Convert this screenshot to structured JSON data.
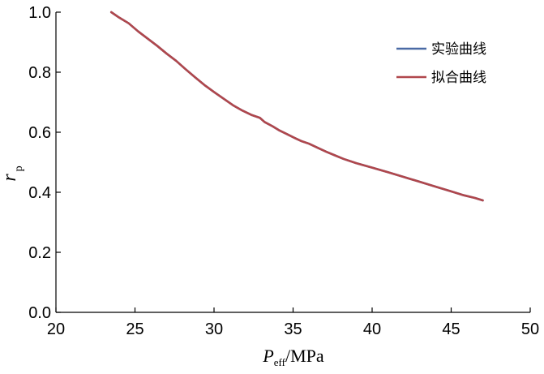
{
  "chart_data": {
    "type": "line",
    "title": "",
    "xlabel": {
      "main": "P",
      "sub": "eff",
      "unit": "/MPa"
    },
    "ylabel": {
      "main": "r",
      "sub": "p"
    },
    "xlim": [
      20,
      50
    ],
    "ylim": [
      0.0,
      1.0
    ],
    "x_ticks": [
      "20",
      "25",
      "30",
      "35",
      "40",
      "45",
      "50"
    ],
    "y_ticks": [
      "0.0",
      "0.2",
      "0.4",
      "0.6",
      "0.8",
      "1.0"
    ],
    "grid": false,
    "legend_position": "top-right",
    "series": [
      {
        "name": "实验曲线",
        "color": "#4a6aa5",
        "x": [
          23.5,
          24.0,
          24.6,
          25.2,
          25.8,
          26.4,
          27.0,
          27.6,
          28.2,
          28.8,
          29.4,
          30.0,
          30.6,
          31.2,
          31.8,
          32.4,
          32.9,
          33.2,
          33.7,
          34.1,
          34.6,
          35.1,
          35.5,
          36.0,
          36.6,
          37.1,
          37.6,
          38.2,
          39.0,
          40.0,
          41.0,
          42.0,
          43.0,
          44.0,
          45.0,
          45.8,
          46.5,
          47.0
        ],
        "y": [
          1.0,
          0.982,
          0.963,
          0.936,
          0.912,
          0.888,
          0.862,
          0.838,
          0.81,
          0.783,
          0.757,
          0.734,
          0.712,
          0.69,
          0.672,
          0.657,
          0.648,
          0.634,
          0.62,
          0.607,
          0.594,
          0.581,
          0.571,
          0.562,
          0.547,
          0.535,
          0.524,
          0.511,
          0.497,
          0.482,
          0.467,
          0.451,
          0.435,
          0.419,
          0.403,
          0.39,
          0.381,
          0.373
        ]
      },
      {
        "name": "拟合曲线",
        "color": "#b0474c",
        "x": [
          23.5,
          24.0,
          24.6,
          25.2,
          25.8,
          26.4,
          27.0,
          27.6,
          28.2,
          28.8,
          29.4,
          30.0,
          30.6,
          31.2,
          31.8,
          32.4,
          32.9,
          33.2,
          33.7,
          34.1,
          34.6,
          35.1,
          35.5,
          36.0,
          36.6,
          37.1,
          37.6,
          38.2,
          39.0,
          40.0,
          41.0,
          42.0,
          43.0,
          44.0,
          45.0,
          45.8,
          46.5,
          47.0
        ],
        "y": [
          1.0,
          0.982,
          0.963,
          0.936,
          0.912,
          0.888,
          0.862,
          0.838,
          0.81,
          0.783,
          0.757,
          0.734,
          0.712,
          0.69,
          0.672,
          0.657,
          0.648,
          0.634,
          0.62,
          0.607,
          0.594,
          0.581,
          0.571,
          0.562,
          0.547,
          0.535,
          0.524,
          0.511,
          0.497,
          0.482,
          0.467,
          0.451,
          0.435,
          0.419,
          0.403,
          0.39,
          0.381,
          0.373
        ]
      }
    ]
  }
}
